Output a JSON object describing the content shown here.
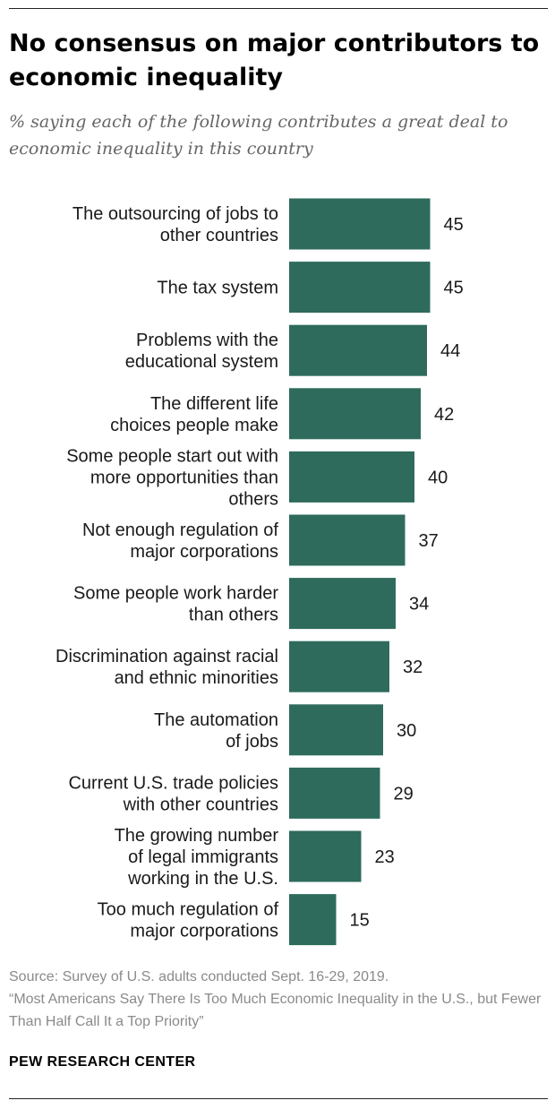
{
  "title": "No consensus on major contributors to economic inequality",
  "subtitle": "% saying each of the following contributes a great deal to economic inequality in this country",
  "source": {
    "line1": "Source: Survey of U.S. adults conducted Sept. 16-29, 2019.",
    "line2": "“Most Americans Say There Is Too Much Economic Inequality in the U.S., but Fewer Than Half Call It a Top Priority”"
  },
  "logo": "PEW RESEARCH CENTER",
  "colors": {
    "bar": "#2e6b5c"
  },
  "chart_data": {
    "type": "bar",
    "orientation": "horizontal",
    "categories": [
      [
        "The outsourcing of jobs to",
        "other countries"
      ],
      [
        "The tax system"
      ],
      [
        "Problems with the",
        "educational system"
      ],
      [
        "The different life",
        "choices people make"
      ],
      [
        "Some people start out with",
        "more opportunities than",
        "others"
      ],
      [
        "Not enough regulation of",
        "major corporations"
      ],
      [
        "Some people work harder",
        "than others"
      ],
      [
        "Discrimination against racial",
        "and ethnic minorities"
      ],
      [
        "The automation",
        "of jobs"
      ],
      [
        "Current U.S. trade policies",
        "with other countries"
      ],
      [
        "The growing number",
        "of legal immigrants",
        "working in the U.S."
      ],
      [
        "Too much regulation of",
        "major corporations"
      ]
    ],
    "values": [
      45,
      45,
      44,
      42,
      40,
      37,
      34,
      32,
      30,
      29,
      23,
      15
    ],
    "xlim": [
      0,
      100
    ],
    "grid": false,
    "legend": "none"
  }
}
